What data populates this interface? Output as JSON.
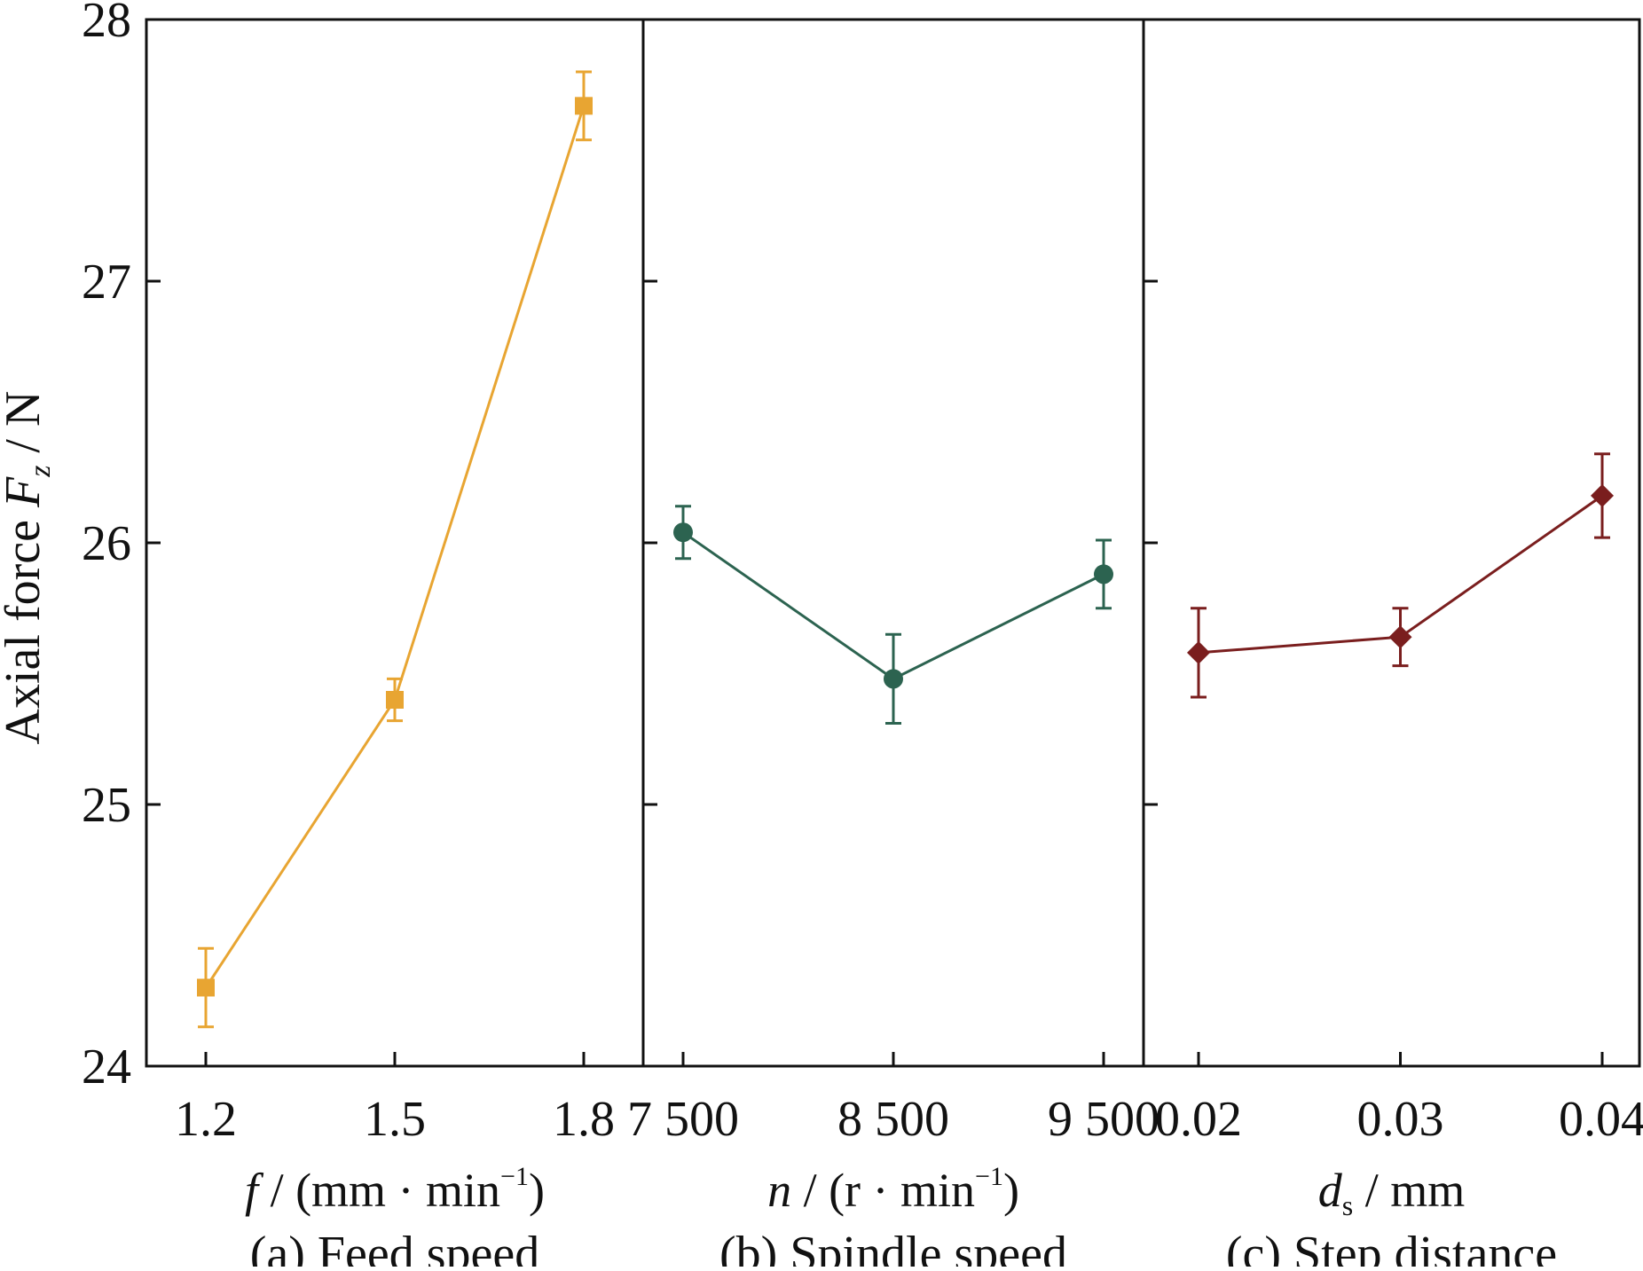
{
  "chart_data": [
    {
      "id": "a",
      "type": "line",
      "caption": "(a) Feed speed",
      "xlabel": {
        "symbol": "f",
        "text": " / (mm · min",
        "superscript": "−1",
        "tail": ")"
      },
      "categories": [
        "1.2",
        "1.5",
        "1.8"
      ],
      "x": [
        1.2,
        1.5,
        1.8
      ],
      "values": [
        24.3,
        25.4,
        27.67
      ],
      "errors": [
        0.15,
        0.08,
        0.13
      ],
      "marker": "square",
      "color": "#E8A532"
    },
    {
      "id": "b",
      "type": "line",
      "caption": "(b) Spindle speed",
      "xlabel": {
        "symbol": "n",
        "text": " / (r · min",
        "superscript": "−1",
        "tail": ")"
      },
      "categories": [
        "7 500",
        "8 500",
        "9 500"
      ],
      "x": [
        7500,
        8500,
        9500
      ],
      "values": [
        26.04,
        25.48,
        25.88
      ],
      "errors": [
        0.1,
        0.17,
        0.13
      ],
      "marker": "circle",
      "color": "#2C6350"
    },
    {
      "id": "c",
      "type": "line",
      "caption": "(c) Step distance",
      "xlabel": {
        "symbol": "d",
        "subscript": "s",
        "text": " / mm",
        "superscript": "",
        "tail": ""
      },
      "categories": [
        "0.02",
        "0.03",
        "0.04"
      ],
      "x": [
        0.02,
        0.03,
        0.04
      ],
      "values": [
        25.58,
        25.64,
        26.18
      ],
      "errors": [
        0.17,
        0.11,
        0.16
      ],
      "marker": "diamond",
      "color": "#7A1E1E"
    }
  ],
  "shared": {
    "ylabel": {
      "text": "Axial force ",
      "symbol": "F",
      "subscript": "z",
      "unit": " / N"
    },
    "ylim": [
      24,
      28
    ],
    "yticks": [
      "24",
      "25",
      "26",
      "27",
      "28"
    ],
    "grid": false
  }
}
